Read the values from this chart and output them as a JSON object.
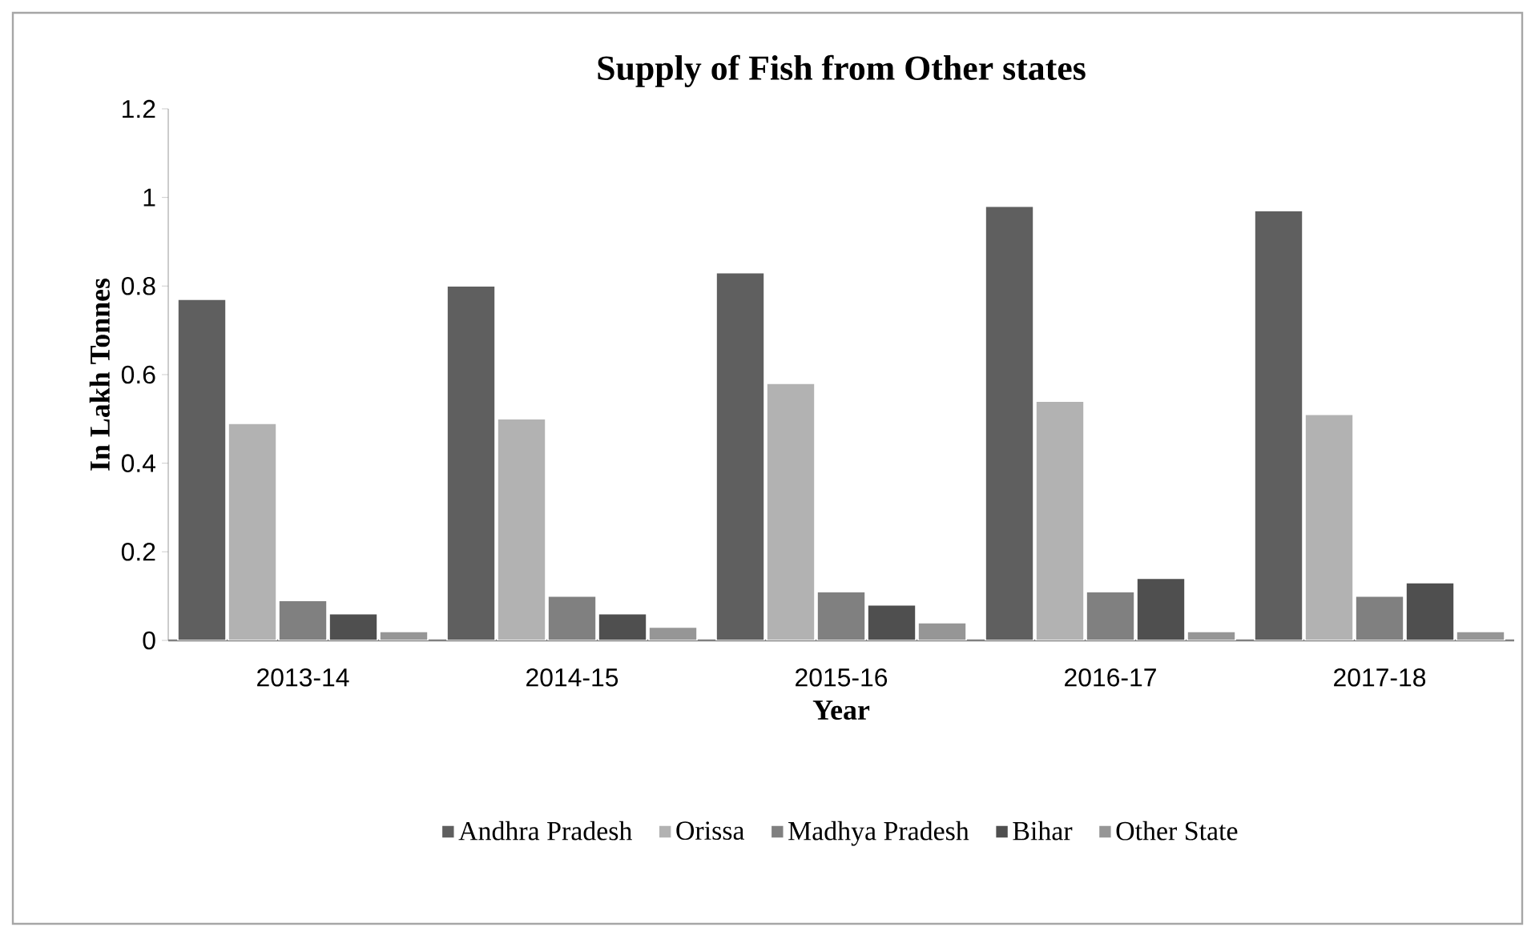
{
  "chart_data": {
    "type": "bar",
    "title": "Supply of Fish from Other states",
    "xlabel": "Year",
    "ylabel": "In Lakh Tonnes",
    "categories": [
      "2013-14",
      "2014-15",
      "2015-16",
      "2016-17",
      "2017-18"
    ],
    "series": [
      {
        "name": "Andhra Pradesh",
        "color": "#5f5f5f",
        "values": [
          0.77,
          0.8,
          0.83,
          0.98,
          0.97
        ]
      },
      {
        "name": "Orissa",
        "color": "#b2b2b2",
        "values": [
          0.49,
          0.5,
          0.58,
          0.54,
          0.51
        ]
      },
      {
        "name": "Madhya Pradesh",
        "color": "#808080",
        "values": [
          0.09,
          0.1,
          0.11,
          0.11,
          0.1
        ]
      },
      {
        "name": "Bihar",
        "color": "#4f4f4f",
        "values": [
          0.06,
          0.06,
          0.08,
          0.14,
          0.13
        ]
      },
      {
        "name": "Other State",
        "color": "#969696",
        "values": [
          0.02,
          0.03,
          0.04,
          0.02,
          0.02
        ]
      }
    ],
    "ylim": [
      0,
      1.2
    ],
    "yticks": [
      0,
      0.2,
      0.4,
      0.6,
      0.8,
      1,
      1.2
    ],
    "legend": "bottom"
  }
}
